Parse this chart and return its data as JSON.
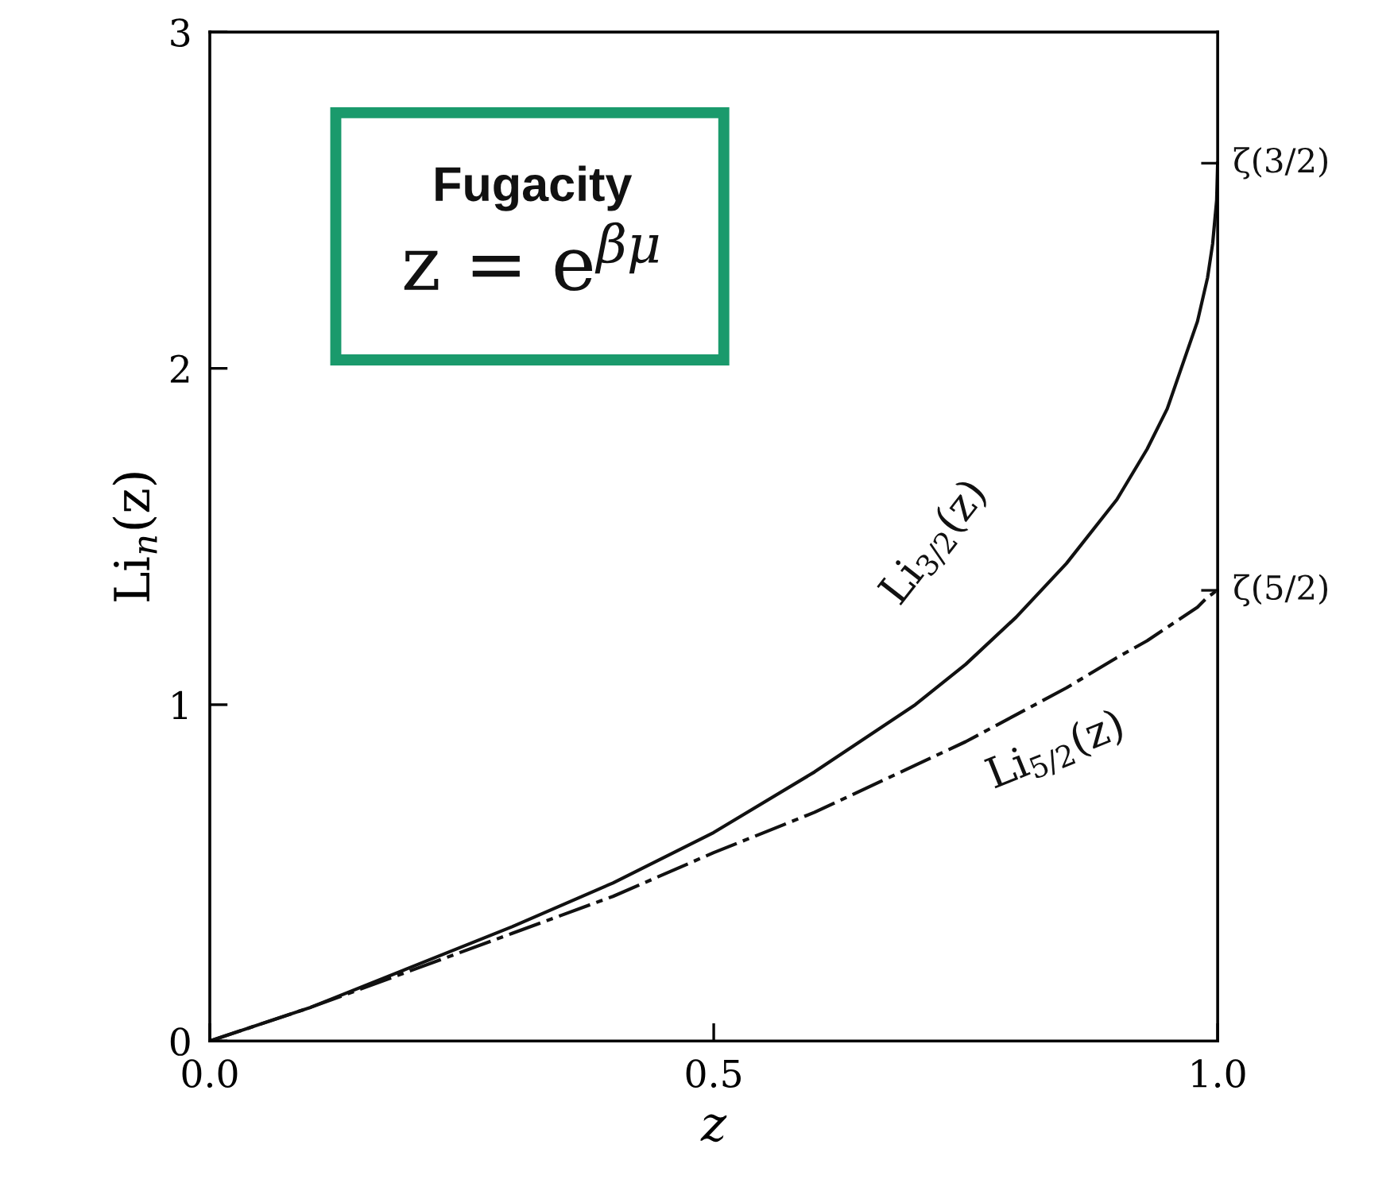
{
  "chart_data": {
    "type": "line",
    "xlabel": "z",
    "ylabel": "Li$_{n}$(z)",
    "x": [
      0,
      0.1,
      0.2,
      0.3,
      0.4,
      0.5,
      0.6,
      0.7,
      0.75,
      0.8,
      0.85,
      0.9,
      0.93,
      0.95,
      0.98,
      0.99,
      0.995,
      0.999,
      1.0
    ],
    "series": [
      {
        "name": "Li$_{3/2}$(z)",
        "color": "#111111",
        "line_style": "solid",
        "values": [
          0,
          0.1,
          0.22,
          0.34,
          0.47,
          0.62,
          0.8,
          1.0,
          1.12,
          1.26,
          1.42,
          1.61,
          1.76,
          1.88,
          2.14,
          2.27,
          2.37,
          2.5,
          2.61
        ]
      },
      {
        "name": "Li$_{5/2}$(z)",
        "color": "#111111",
        "line_style": "dashed",
        "values": [
          0,
          0.1,
          0.21,
          0.32,
          0.43,
          0.56,
          0.68,
          0.82,
          0.89,
          0.97,
          1.05,
          1.14,
          1.19,
          1.23,
          1.29,
          1.32,
          1.33,
          1.34,
          1.34
        ]
      }
    ],
    "xlim": [
      0,
      1.0
    ],
    "ylim": [
      0,
      3
    ],
    "xticks": [
      {
        "value": 0,
        "label": "0.0"
      },
      0.5,
      {
        "value": 1.0,
        "label": "1.0"
      }
    ],
    "yticks": [
      0,
      1,
      2,
      3
    ],
    "ref_lines": [
      {
        "axis": "y",
        "value": 2.61,
        "label": "ζ(3/2)"
      },
      {
        "axis": "y",
        "value": 1.34,
        "label": "ζ(5/2)"
      }
    ],
    "grid": false,
    "annotations": [
      "Fugacity",
      "z = e$^{βμ}$"
    ]
  }
}
